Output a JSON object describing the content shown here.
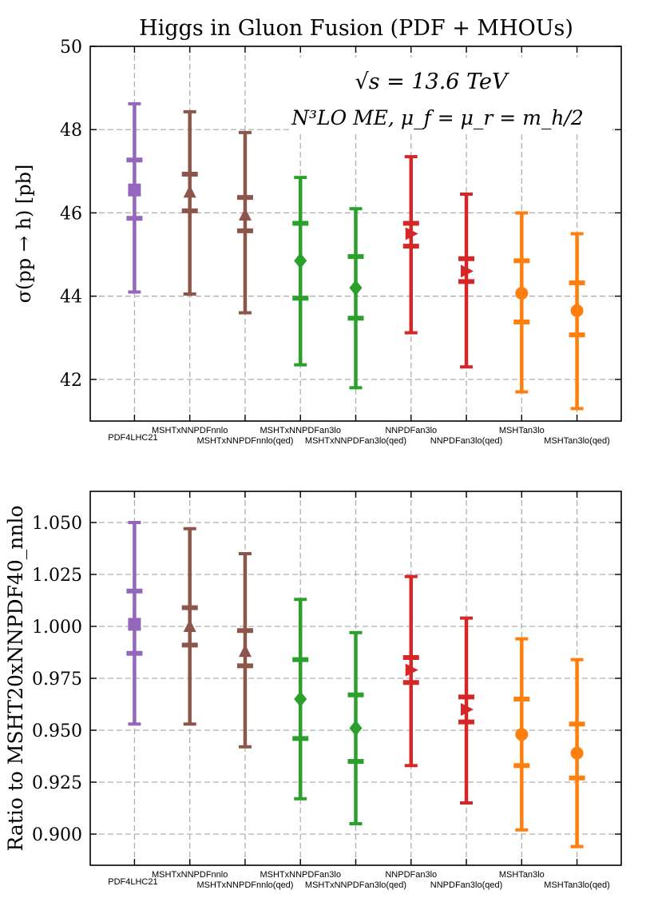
{
  "chart_data": [
    {
      "type": "errorbar",
      "title": "Higgs in Gluon Fusion (PDF + MHOUs)",
      "ylabel": "σ(pp → h) [pb]",
      "ylim": [
        41,
        50
      ],
      "yticks": [
        42,
        44,
        46,
        48,
        50
      ],
      "ytick_labels": [
        "42",
        "44",
        "46",
        "48",
        "50"
      ],
      "annotation_line1": "√s = 13.6 TeV",
      "annotation_line2": "N³LO ME, μ_f = μ_r = m_h/2",
      "grid": true,
      "categories": [
        "PDF4LHC21",
        "MSHTxNNPDFnnlo",
        "MSHTxNNPDFnnlo(qed)",
        "MSHTxNNPDFan3lo",
        "MSHTxNNPDFan3lo(qed)",
        "NNPDFan3lo",
        "NNPDFan3lo(qed)",
        "MSHTan3lo",
        "MSHTan3lo(qed)"
      ],
      "central": [
        46.55,
        46.5,
        45.95,
        44.85,
        44.2,
        45.5,
        44.6,
        44.07,
        43.65
      ],
      "inner_low": [
        45.87,
        46.05,
        45.57,
        43.95,
        43.47,
        45.2,
        44.35,
        43.38,
        43.07
      ],
      "inner_high": [
        47.27,
        46.93,
        46.37,
        45.75,
        44.95,
        45.75,
        44.9,
        44.85,
        44.32
      ],
      "outer_low": [
        44.1,
        44.05,
        43.6,
        42.35,
        41.8,
        43.12,
        42.3,
        41.7,
        41.3
      ],
      "outer_high": [
        48.62,
        48.43,
        47.93,
        46.85,
        46.1,
        47.35,
        46.45,
        46.0,
        45.5
      ]
    },
    {
      "type": "errorbar",
      "ylabel": "Ratio to MSHT20xNNPDF40_nnlo",
      "ylim": [
        0.885,
        1.065
      ],
      "yticks": [
        0.9,
        0.925,
        0.95,
        0.975,
        1.0,
        1.025,
        1.05
      ],
      "ytick_labels": [
        "0.900",
        "0.925",
        "0.950",
        "0.975",
        "1.000",
        "1.025",
        "1.050"
      ],
      "grid": true,
      "categories": [
        "PDF4LHC21",
        "MSHTxNNPDFnnlo",
        "MSHTxNNPDFnnlo(qed)",
        "MSHTxNNPDFan3lo",
        "MSHTxNNPDFan3lo(qed)",
        "NNPDFan3lo",
        "NNPDFan3lo(qed)",
        "MSHTan3lo",
        "MSHTan3lo(qed)"
      ],
      "central": [
        1.001,
        1.0,
        0.988,
        0.965,
        0.951,
        0.979,
        0.96,
        0.948,
        0.939
      ],
      "inner_low": [
        0.987,
        0.991,
        0.981,
        0.946,
        0.935,
        0.973,
        0.954,
        0.933,
        0.927
      ],
      "inner_high": [
        1.017,
        1.009,
        0.998,
        0.984,
        0.967,
        0.985,
        0.966,
        0.965,
        0.953
      ],
      "outer_low": [
        0.953,
        0.953,
        0.942,
        0.917,
        0.905,
        0.933,
        0.915,
        0.902,
        0.894
      ],
      "outer_high": [
        1.05,
        1.047,
        1.035,
        1.013,
        0.997,
        1.024,
        1.004,
        0.994,
        0.984
      ]
    }
  ],
  "series_style": {
    "colors": [
      "#9467bd",
      "#8c564b",
      "#8c564b",
      "#2ca02c",
      "#2ca02c",
      "#d62728",
      "#d62728",
      "#ff7f0e",
      "#ff7f0e"
    ],
    "markers": [
      "square",
      "triangle",
      "triangle",
      "diamond",
      "diamond",
      "triangle-right",
      "triangle-right",
      "circle",
      "circle"
    ],
    "grid_color": "#b0b0b0",
    "axis_color": "#000000"
  }
}
